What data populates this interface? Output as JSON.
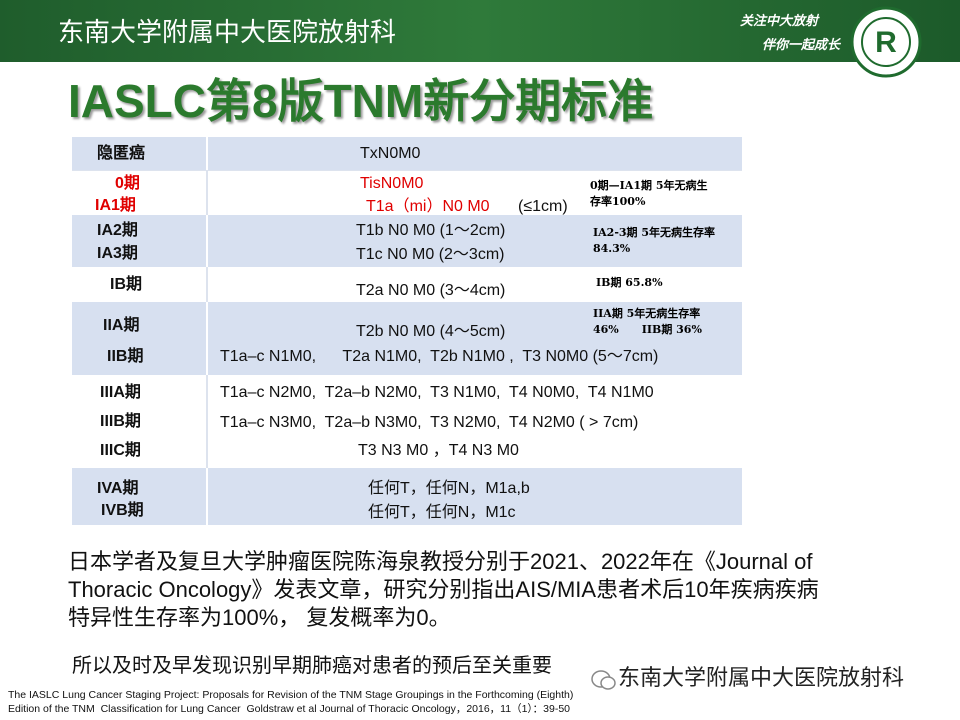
{
  "header": {
    "org": "东南大学附属中大医院放射科",
    "slogan": [
      "关注中大放射",
      "伴你一起成长"
    ]
  },
  "title": "IASLC第8版TNM新分期标准",
  "table": {
    "rows": [
      {
        "stage": [
          "隐匿癌"
        ],
        "criteria": [
          "TxN0M0"
        ]
      },
      {
        "stage": [
          "0期",
          "IA1期"
        ],
        "criteria": [
          "TisN0M0",
          "T1a（mi）N0 M0",
          "(≤1cm)"
        ],
        "note": [
          "0期—IA1期 5年无病生",
          "存率100%"
        ]
      },
      {
        "stage": [
          "IA2期",
          "IA3期"
        ],
        "criteria": [
          "T1b N0 M0 (1～2cm)",
          "T1c N0 M0 (2～3cm)"
        ],
        "note": [
          "IA2-3期 5年无病生存率",
          "84.3%"
        ]
      },
      {
        "stage": [
          "IB期"
        ],
        "criteria": [
          "T2a N0 M0 (3～4cm)"
        ],
        "note": [
          "IB期 65.8%"
        ]
      },
      {
        "stage": [
          "IIA期",
          "IIB期"
        ],
        "criteria": [
          "T2b N0 M0 (4～5cm)",
          "T1a–c N1M0,      T2a N1M0,  T2b N1M0 ,  T3 N0M0 (5～7cm)"
        ],
        "note": [
          "IIA期 5年无病生存率",
          "46%      IIB期 36%"
        ]
      },
      {
        "stage": [
          "IIIA期",
          "IIIB期",
          "IIIC期"
        ],
        "criteria": [
          "T1a–c N2M0,  T2a–b N2M0,  T3 N1M0,  T4 N0M0,  T4 N1M0",
          "T1a–c N3M0,  T2a–b N3M0,  T3 N2M0,  T4 N2M0 ( > 7cm)",
          "T3 N3 M0 ，T4 N3 M0"
        ]
      },
      {
        "stage": [
          "IVA期",
          "IVB期"
        ],
        "criteria": [
          "任何T，任何N，M1a,b",
          "任何T，任何N，M1c"
        ]
      }
    ]
  },
  "body": {
    "paragraph": [
      "日本学者及复旦大学肿瘤医院陈海泉教授分别于2021、2022年在《Journal of",
      "Thoracic Oncology》发表文章，研究分别指出AIS/MIA患者术后10年疾病疾病",
      "特异性生存率为100%， 复发概率为0。"
    ],
    "conclusion": "所以及时及早发现识别早期肺癌对患者的预后至关重要"
  },
  "watermark": "东南大学附属中大医院放射科",
  "citation": [
    "The IASLC Lung Cancer Staging Project: Proposals for Revision of the TNM Stage Groupings in the Forthcoming (Eighth)",
    "Edition of the TNM  Classification for Lung Cancer  Goldstraw et al Journal of Thoracic Oncology，2016，11（1）：39-50"
  ]
}
